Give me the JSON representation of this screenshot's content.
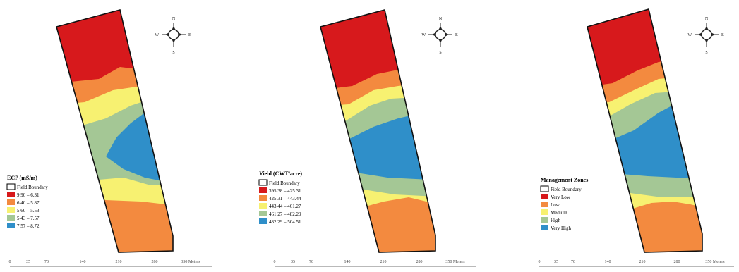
{
  "panels": [
    {
      "legend": {
        "title": "ECP (mS/m)",
        "items": [
          {
            "label": "Field Boundary",
            "color": "#ffffff",
            "boundary": true
          },
          {
            "label": "9.90 – 6.31",
            "color": "#d7191c"
          },
          {
            "label": "6.40 – 5.87",
            "color": "#f38a3f"
          },
          {
            "label": "5.60 – 5.53",
            "color": "#f7f171"
          },
          {
            "label": "5.43 – 7.57",
            "color": "#a4c795"
          },
          {
            "label": "7.57 – 8.72",
            "color": "#2f8fc9"
          }
        ]
      },
      "north": {
        "n": "N",
        "e": "E",
        "s": "S",
        "w": "W"
      },
      "scale": {
        "ticks": [
          "0",
          "35",
          "70",
          "140",
          "210",
          "280",
          "350 Meters"
        ]
      }
    },
    {
      "legend": {
        "title": "Yield (CWT/acre)",
        "items": [
          {
            "label": "Field Boundary",
            "color": "#ffffff",
            "boundary": true
          },
          {
            "label": "395.38 – 425.31",
            "color": "#d7191c"
          },
          {
            "label": "425.31 – 443.44",
            "color": "#f38a3f"
          },
          {
            "label": "443.44 – 461.27",
            "color": "#f7f171"
          },
          {
            "label": "461.27 – 482.29",
            "color": "#a4c795"
          },
          {
            "label": "482.29 – 504.51",
            "color": "#2f8fc9"
          }
        ]
      },
      "north": {
        "n": "N",
        "e": "E",
        "s": "S",
        "w": "W"
      },
      "scale": {
        "ticks": [
          "0",
          "35",
          "70",
          "140",
          "210",
          "280",
          "350 Meters"
        ]
      }
    },
    {
      "legend": {
        "title": "Management Zones",
        "items": [
          {
            "label": "Field Boundary",
            "color": "#ffffff",
            "boundary": true
          },
          {
            "label": "Very Low",
            "color": "#d7191c"
          },
          {
            "label": "Low",
            "color": "#f38a3f"
          },
          {
            "label": "Medium",
            "color": "#f7f171"
          },
          {
            "label": "High",
            "color": "#a4c795"
          },
          {
            "label": "Very High",
            "color": "#2f8fc9"
          }
        ]
      },
      "north": {
        "n": "N",
        "e": "E",
        "s": "S",
        "w": "W"
      },
      "scale": {
        "ticks": [
          "0",
          "35",
          "70",
          "140",
          "210",
          "280",
          "350 Meters"
        ]
      }
    }
  ]
}
